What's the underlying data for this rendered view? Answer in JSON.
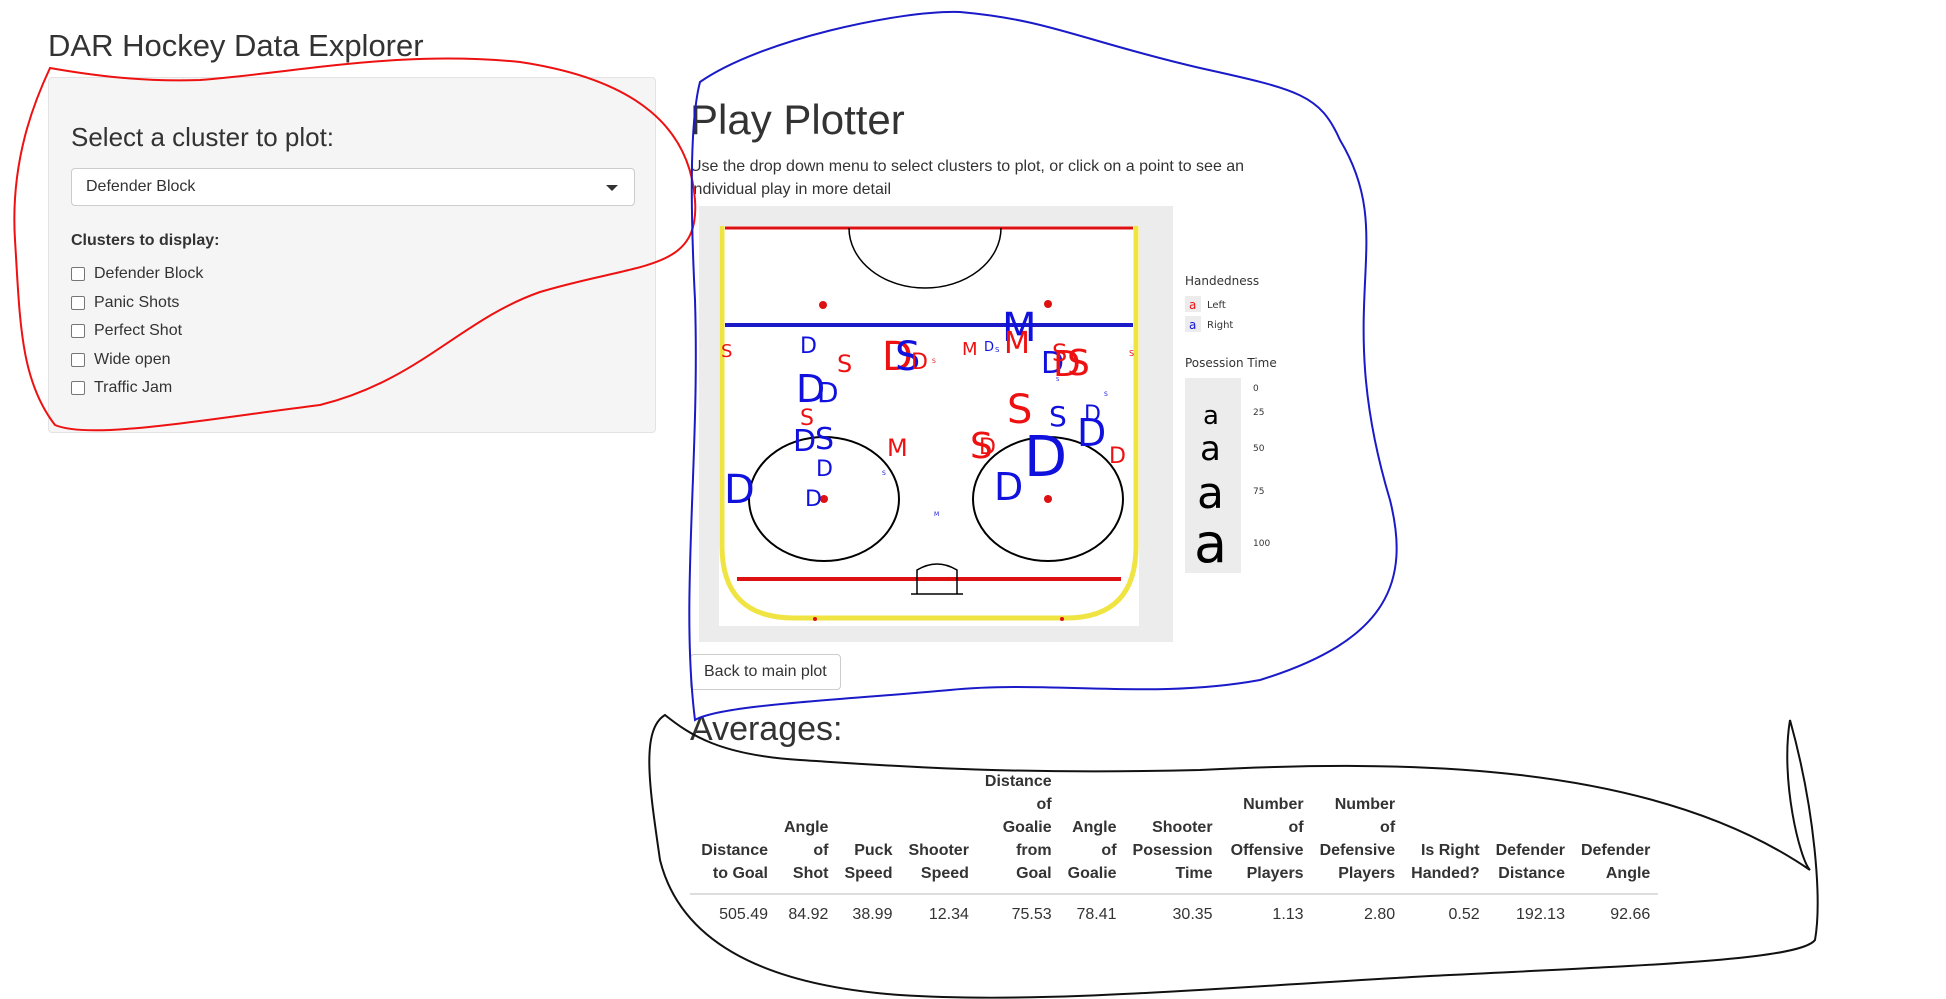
{
  "app": {
    "title": "DAR Hockey Data Explorer"
  },
  "sidebar": {
    "select_heading": "Select a cluster to plot:",
    "select_value": "Defender Block",
    "checkbox_heading": "Clusters to display:",
    "checkboxes": [
      {
        "label": "Defender Block",
        "checked": false
      },
      {
        "label": "Panic Shots",
        "checked": false
      },
      {
        "label": "Perfect Shot",
        "checked": false
      },
      {
        "label": "Wide open",
        "checked": false
      },
      {
        "label": "Traffic Jam",
        "checked": false
      }
    ]
  },
  "main": {
    "title": "Play Plotter",
    "instructions": "Use the drop down menu to select clusters to plot, or click on a point to see an individual play in more detail",
    "back_button": "Back to main plot"
  },
  "legend": {
    "handedness_title": "Handedness",
    "handedness": [
      {
        "glyph": "a",
        "label": "Left",
        "color": "#ee1111"
      },
      {
        "glyph": "a",
        "label": "Right",
        "color": "#1111dd"
      }
    ],
    "posession_title": "Posession Time",
    "posession_levels": [
      "0",
      "25",
      "50",
      "75",
      "100"
    ],
    "posession_glyph": "a"
  },
  "averages": {
    "title": "Averages:",
    "headers": [
      "Distance to Goal",
      "Angle of Shot",
      "Puck Speed",
      "Shooter Speed",
      "Distance of Goalie from Goal",
      "Angle of Goalie",
      "Shooter Posession Time",
      "Number of Offensive Players",
      "Number of Defensive Players",
      "Is Right Handed?",
      "Defender Distance",
      "Defender Angle"
    ],
    "values": [
      "505.49",
      "84.92",
      "38.99",
      "12.34",
      "75.53",
      "78.41",
      "30.35",
      "1.13",
      "2.80",
      "0.52",
      "192.13",
      "92.66"
    ]
  },
  "colors": {
    "left": "#ee1111",
    "right": "#1111dd",
    "rink_boards": "#f0e442",
    "blue_line": "#1a1ac8",
    "goal_line": "#dd1111"
  }
}
